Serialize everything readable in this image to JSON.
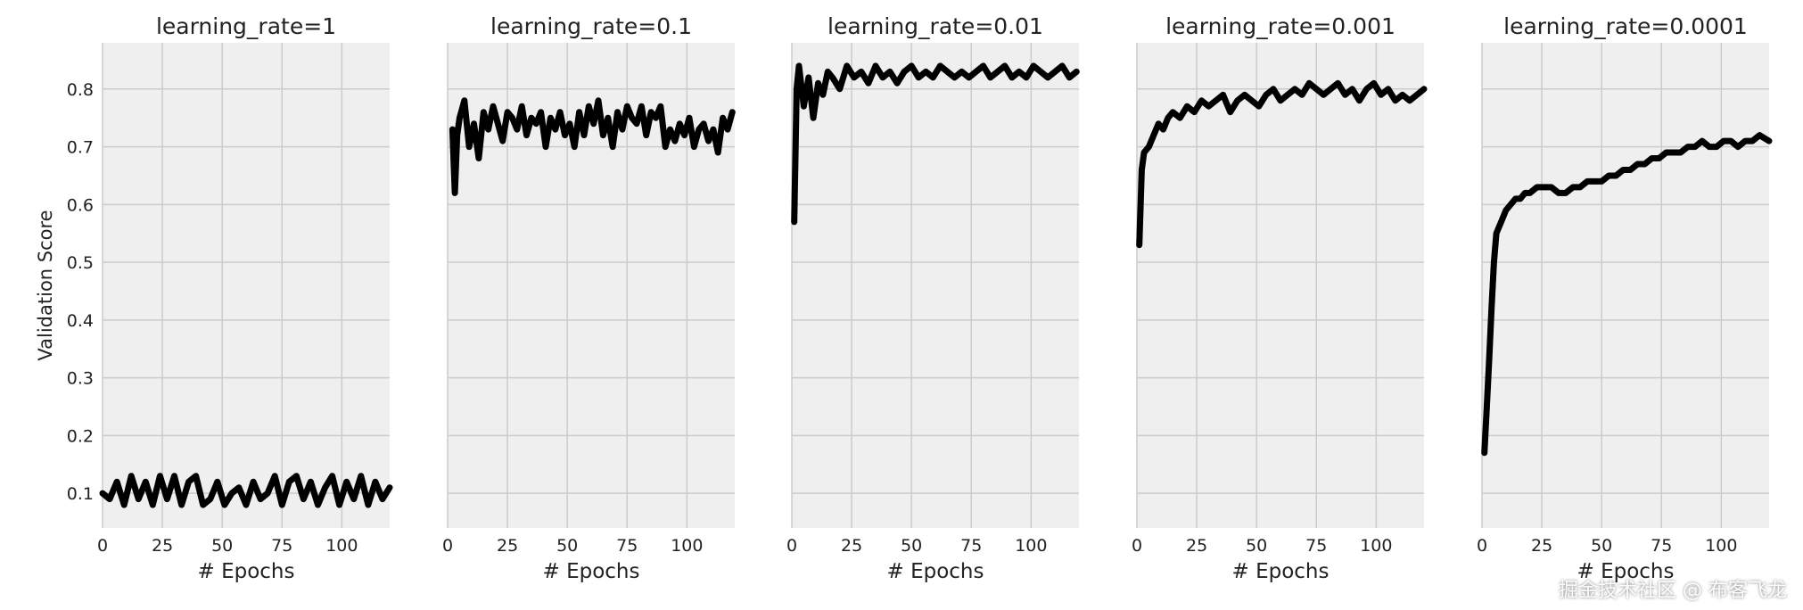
{
  "watermark": "掘金技术社区 @ 布客飞龙",
  "style": {
    "panel_bg": "#efefef",
    "grid_color": "#cbcbcb",
    "line_color": "#000000",
    "text_color": "#222222"
  },
  "chart_data": [
    {
      "type": "line",
      "title": "learning_rate=1",
      "xlabel": "# Epochs",
      "ylabel": "Validation Score",
      "xlim": [
        0,
        120
      ],
      "ylim": [
        0.04,
        0.88
      ],
      "xticks": [
        0,
        25,
        50,
        75,
        100
      ],
      "yticks": [
        0.1,
        0.2,
        0.3,
        0.4,
        0.5,
        0.6,
        0.7,
        0.8
      ],
      "show_yticks": true,
      "grid": true,
      "x": [
        0,
        3,
        6,
        9,
        12,
        15,
        18,
        21,
        24,
        27,
        30,
        33,
        36,
        39,
        42,
        45,
        48,
        51,
        54,
        57,
        60,
        63,
        66,
        69,
        72,
        75,
        78,
        81,
        84,
        87,
        90,
        93,
        96,
        99,
        102,
        105,
        108,
        111,
        114,
        117,
        120
      ],
      "y": [
        0.1,
        0.09,
        0.12,
        0.08,
        0.13,
        0.09,
        0.12,
        0.08,
        0.13,
        0.09,
        0.13,
        0.08,
        0.12,
        0.13,
        0.08,
        0.09,
        0.12,
        0.08,
        0.1,
        0.11,
        0.08,
        0.12,
        0.09,
        0.1,
        0.13,
        0.08,
        0.12,
        0.13,
        0.09,
        0.12,
        0.08,
        0.11,
        0.13,
        0.08,
        0.12,
        0.09,
        0.13,
        0.08,
        0.12,
        0.09,
        0.11
      ]
    },
    {
      "type": "line",
      "title": "learning_rate=0.1",
      "xlabel": "# Epochs",
      "ylabel": "",
      "xlim": [
        0,
        120
      ],
      "ylim": [
        0.04,
        0.88
      ],
      "xticks": [
        0,
        25,
        50,
        75,
        100
      ],
      "yticks": [
        0.1,
        0.2,
        0.3,
        0.4,
        0.5,
        0.6,
        0.7,
        0.8
      ],
      "show_yticks": false,
      "grid": true,
      "x": [
        2,
        3,
        4,
        5,
        7,
        9,
        11,
        13,
        15,
        17,
        19,
        21,
        23,
        25,
        27,
        29,
        31,
        33,
        35,
        37,
        39,
        41,
        43,
        45,
        47,
        49,
        51,
        53,
        55,
        57,
        59,
        61,
        63,
        65,
        67,
        69,
        71,
        73,
        75,
        77,
        79,
        81,
        83,
        85,
        87,
        89,
        91,
        93,
        95,
        97,
        99,
        101,
        103,
        105,
        107,
        109,
        111,
        113,
        115,
        117,
        119
      ],
      "y": [
        0.73,
        0.62,
        0.72,
        0.75,
        0.78,
        0.7,
        0.74,
        0.68,
        0.76,
        0.73,
        0.77,
        0.74,
        0.71,
        0.76,
        0.75,
        0.73,
        0.77,
        0.72,
        0.75,
        0.74,
        0.76,
        0.7,
        0.75,
        0.73,
        0.76,
        0.72,
        0.74,
        0.7,
        0.76,
        0.72,
        0.77,
        0.74,
        0.78,
        0.72,
        0.75,
        0.7,
        0.76,
        0.73,
        0.77,
        0.75,
        0.74,
        0.77,
        0.72,
        0.76,
        0.75,
        0.77,
        0.7,
        0.73,
        0.71,
        0.74,
        0.72,
        0.75,
        0.7,
        0.73,
        0.74,
        0.71,
        0.73,
        0.69,
        0.75,
        0.73,
        0.76
      ]
    },
    {
      "type": "line",
      "title": "learning_rate=0.01",
      "xlabel": "# Epochs",
      "ylabel": "",
      "xlim": [
        0,
        120
      ],
      "ylim": [
        0.04,
        0.88
      ],
      "xticks": [
        0,
        25,
        50,
        75,
        100
      ],
      "yticks": [
        0.1,
        0.2,
        0.3,
        0.4,
        0.5,
        0.6,
        0.7,
        0.8
      ],
      "show_yticks": false,
      "grid": true,
      "x": [
        1,
        2,
        3,
        5,
        7,
        9,
        11,
        13,
        15,
        17,
        20,
        23,
        26,
        29,
        32,
        35,
        38,
        41,
        44,
        47,
        50,
        53,
        56,
        59,
        62,
        65,
        68,
        71,
        74,
        77,
        80,
        83,
        86,
        89,
        92,
        95,
        98,
        101,
        104,
        107,
        110,
        113,
        116,
        119
      ],
      "y": [
        0.57,
        0.8,
        0.84,
        0.77,
        0.82,
        0.75,
        0.81,
        0.79,
        0.83,
        0.82,
        0.8,
        0.84,
        0.82,
        0.83,
        0.81,
        0.84,
        0.82,
        0.83,
        0.81,
        0.83,
        0.84,
        0.82,
        0.83,
        0.82,
        0.84,
        0.83,
        0.82,
        0.83,
        0.82,
        0.83,
        0.84,
        0.82,
        0.83,
        0.84,
        0.82,
        0.83,
        0.82,
        0.84,
        0.83,
        0.82,
        0.83,
        0.84,
        0.82,
        0.83
      ]
    },
    {
      "type": "line",
      "title": "learning_rate=0.001",
      "xlabel": "# Epochs",
      "ylabel": "",
      "xlim": [
        0,
        120
      ],
      "ylim": [
        0.04,
        0.88
      ],
      "xticks": [
        0,
        25,
        50,
        75,
        100
      ],
      "yticks": [
        0.1,
        0.2,
        0.3,
        0.4,
        0.5,
        0.6,
        0.7,
        0.8
      ],
      "show_yticks": false,
      "grid": true,
      "x": [
        1,
        2,
        3,
        5,
        7,
        9,
        11,
        13,
        15,
        18,
        21,
        24,
        27,
        30,
        33,
        36,
        39,
        42,
        45,
        48,
        51,
        54,
        57,
        60,
        63,
        66,
        69,
        72,
        75,
        78,
        81,
        84,
        87,
        90,
        93,
        96,
        99,
        102,
        105,
        108,
        111,
        114,
        117,
        120
      ],
      "y": [
        0.53,
        0.66,
        0.69,
        0.7,
        0.72,
        0.74,
        0.73,
        0.75,
        0.76,
        0.75,
        0.77,
        0.76,
        0.78,
        0.77,
        0.78,
        0.79,
        0.76,
        0.78,
        0.79,
        0.78,
        0.77,
        0.79,
        0.8,
        0.78,
        0.79,
        0.8,
        0.79,
        0.81,
        0.8,
        0.79,
        0.8,
        0.81,
        0.79,
        0.8,
        0.78,
        0.8,
        0.81,
        0.79,
        0.8,
        0.78,
        0.79,
        0.78,
        0.79,
        0.8
      ]
    },
    {
      "type": "line",
      "title": "learning_rate=0.0001",
      "xlabel": "# Epochs",
      "ylabel": "",
      "xlim": [
        0,
        120
      ],
      "ylim": [
        0.04,
        0.88
      ],
      "xticks": [
        0,
        25,
        50,
        75,
        100
      ],
      "yticks": [
        0.1,
        0.2,
        0.3,
        0.4,
        0.5,
        0.6,
        0.7,
        0.8
      ],
      "show_yticks": false,
      "grid": true,
      "x": [
        1,
        2,
        3,
        4,
        5,
        6,
        7,
        8,
        10,
        12,
        14,
        16,
        18,
        20,
        23,
        26,
        29,
        32,
        35,
        38,
        41,
        44,
        47,
        50,
        53,
        56,
        59,
        62,
        65,
        68,
        71,
        74,
        77,
        80,
        83,
        86,
        89,
        92,
        95,
        98,
        101,
        104,
        107,
        110,
        113,
        116,
        120
      ],
      "y": [
        0.17,
        0.25,
        0.33,
        0.42,
        0.5,
        0.55,
        0.56,
        0.57,
        0.59,
        0.6,
        0.61,
        0.61,
        0.62,
        0.62,
        0.63,
        0.63,
        0.63,
        0.62,
        0.62,
        0.63,
        0.63,
        0.64,
        0.64,
        0.64,
        0.65,
        0.65,
        0.66,
        0.66,
        0.67,
        0.67,
        0.68,
        0.68,
        0.69,
        0.69,
        0.69,
        0.7,
        0.7,
        0.71,
        0.7,
        0.7,
        0.71,
        0.71,
        0.7,
        0.71,
        0.71,
        0.72,
        0.71
      ]
    }
  ]
}
